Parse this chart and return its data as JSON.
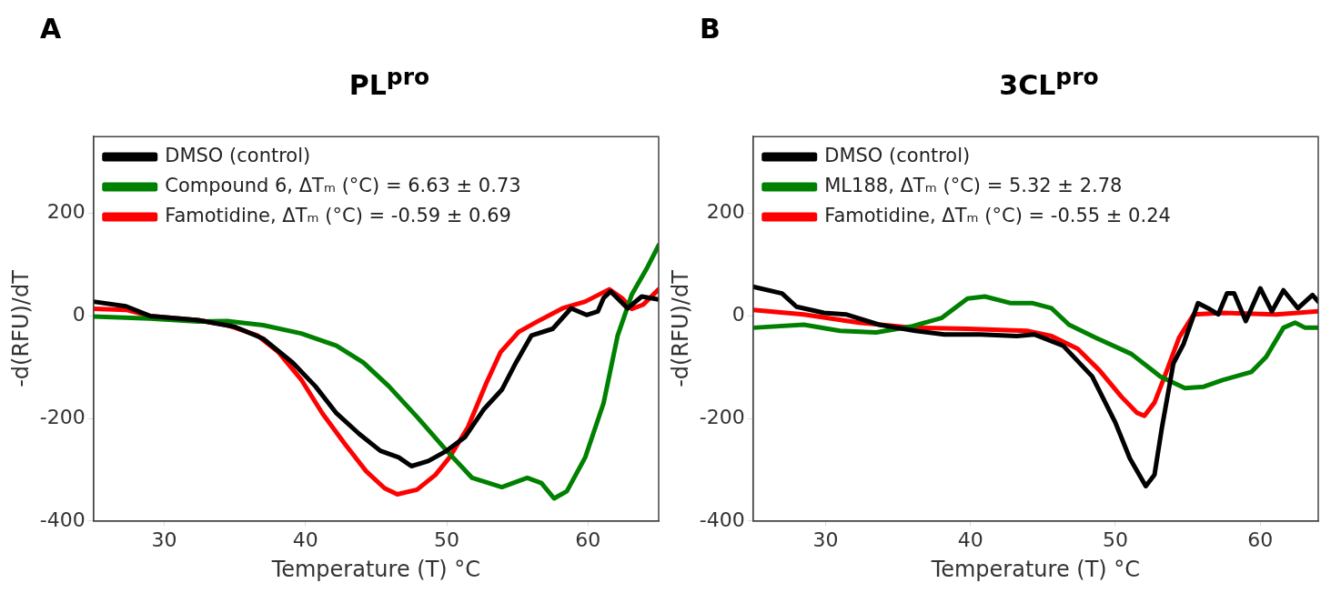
{
  "chart_data": [
    {
      "type": "line",
      "title": "PL$^{pro}$",
      "annotations": [
        "A"
      ],
      "xlabel": "Temperature (T) °C",
      "ylabel": "-d(RFU)/dT",
      "xlim": [
        25,
        65
      ],
      "xticks": [
        30,
        40,
        50,
        60
      ],
      "ylim": [
        -400,
        350
      ],
      "yticks": [
        -400,
        -200,
        0,
        200
      ],
      "grid": false,
      "legend": "top left",
      "marker": "none",
      "series": [
        {
          "name": "DMSO (control)",
          "color": "#000000",
          "x": [
            25,
            27.3,
            29,
            32.4,
            35,
            37,
            39.1,
            40.7,
            42.2,
            43.8,
            45.3,
            46.6,
            47.5,
            48.7,
            50,
            51.3,
            52.6,
            53.9,
            54.9,
            56,
            57.5,
            58.8,
            59.9,
            60.7,
            61.1,
            61.6,
            62.8,
            63.8,
            65
          ],
          "values": [
            28,
            19,
            0,
            -8,
            -21,
            -44,
            -91,
            -137,
            -190,
            -230,
            -263,
            -276,
            -293,
            -283,
            -263,
            -236,
            -183,
            -144,
            -91,
            -38,
            -25,
            15,
            2,
            9,
            35,
            48,
            15,
            38,
            32
          ]
        },
        {
          "name": "Compound 6, ΔTₘ (°C) = 6.63 ± 0.73",
          "color": "#008000",
          "x": [
            25,
            29,
            32.4,
            34.5,
            37,
            39.7,
            42.2,
            44.1,
            45.9,
            47.9,
            50,
            51.8,
            53.9,
            55.7,
            56.7,
            57.6,
            58.5,
            59.8,
            61.1,
            62.1,
            63.1,
            64.2,
            65
          ],
          "values": [
            -1,
            -5,
            -11,
            -10,
            -18,
            -34,
            -58,
            -91,
            -137,
            -197,
            -263,
            -316,
            -334,
            -316,
            -326,
            -356,
            -342,
            -276,
            -170,
            -38,
            42,
            95,
            138
          ]
        },
        {
          "name": "Famotidine, ΔTₘ (°C) = -0.59 ± 0.69",
          "color": "#ff0000",
          "x": [
            25,
            27.3,
            29,
            32.4,
            34.5,
            36.6,
            38.1,
            39.7,
            41.2,
            42.8,
            44.3,
            45.6,
            46.5,
            47.9,
            49.2,
            50.2,
            51.5,
            52.8,
            53.8,
            55.1,
            56.4,
            58.2,
            59.8,
            61.5,
            62.4,
            63.1,
            63.9,
            65
          ],
          "values": [
            14,
            12,
            0,
            -8,
            -18,
            -38,
            -71,
            -124,
            -190,
            -250,
            -303,
            -336,
            -348,
            -339,
            -310,
            -276,
            -217,
            -131,
            -71,
            -31,
            -11,
            15,
            28,
            52,
            35,
            14,
            22,
            52
          ]
        }
      ]
    },
    {
      "type": "line",
      "title": "3CL$^{pro}$",
      "annotations": [
        "B"
      ],
      "xlabel": "Temperature (T) °C",
      "ylabel": "-d(RFU)/dT",
      "xlim": [
        25,
        64
      ],
      "xticks": [
        30,
        40,
        50,
        60
      ],
      "ylim": [
        -400,
        350
      ],
      "yticks": [
        -400,
        -200,
        0,
        200
      ],
      "grid": false,
      "legend": "top left",
      "marker": "none",
      "series": [
        {
          "name": "DMSO (control)",
          "color": "#000000",
          "x": [
            25,
            27,
            28,
            29.9,
            31.4,
            33.7,
            36.2,
            38.2,
            40.7,
            43.2,
            44.4,
            46.4,
            48.4,
            50,
            51,
            52.1,
            52.7,
            53.2,
            54,
            54.7,
            55.7,
            56.4,
            57.1,
            57.7,
            58.2,
            59,
            60,
            60.8,
            61.6,
            62.6,
            63.6,
            64
          ],
          "values": [
            57,
            44,
            18,
            6,
            3,
            -17,
            -29,
            -36,
            -36,
            -39,
            -36,
            -58,
            -118,
            -208,
            -278,
            -332,
            -310,
            -220,
            -93,
            -55,
            25,
            15,
            3,
            44,
            44,
            -10,
            54,
            9,
            50,
            15,
            41,
            28
          ]
        },
        {
          "name": "ML188, ΔTₘ (°C) = 5.32 ± 2.78",
          "color": "#008000",
          "x": [
            25,
            28.5,
            31,
            33.5,
            36,
            38,
            39.8,
            41,
            42.8,
            44.3,
            45.6,
            46.8,
            48.6,
            51.1,
            53.1,
            54.8,
            56.1,
            57.4,
            59.4,
            60.4,
            61.6,
            62.4,
            63.1,
            64
          ],
          "values": [
            -23,
            -17,
            -29,
            -32,
            -20,
            -4,
            34,
            38,
            25,
            25,
            15,
            -17,
            -42,
            -74,
            -118,
            -141,
            -138,
            -125,
            -109,
            -80,
            -23,
            -13,
            -23,
            -23
          ]
        },
        {
          "name": "Famotidine, ΔTₘ (°C) = -0.55 ± 0.24",
          "color": "#ff0000",
          "x": [
            25,
            28.5,
            32.3,
            36.1,
            39.8,
            43.9,
            45.6,
            47.4,
            48.9,
            50.4,
            51.5,
            52,
            52.7,
            53.4,
            54.4,
            55.4,
            57.4,
            61.1,
            64
          ],
          "values": [
            12,
            3,
            -13,
            -23,
            -25,
            -29,
            -39,
            -64,
            -106,
            -157,
            -189,
            -195,
            -169,
            -118,
            -42,
            3,
            6,
            3,
            9
          ]
        }
      ]
    }
  ]
}
